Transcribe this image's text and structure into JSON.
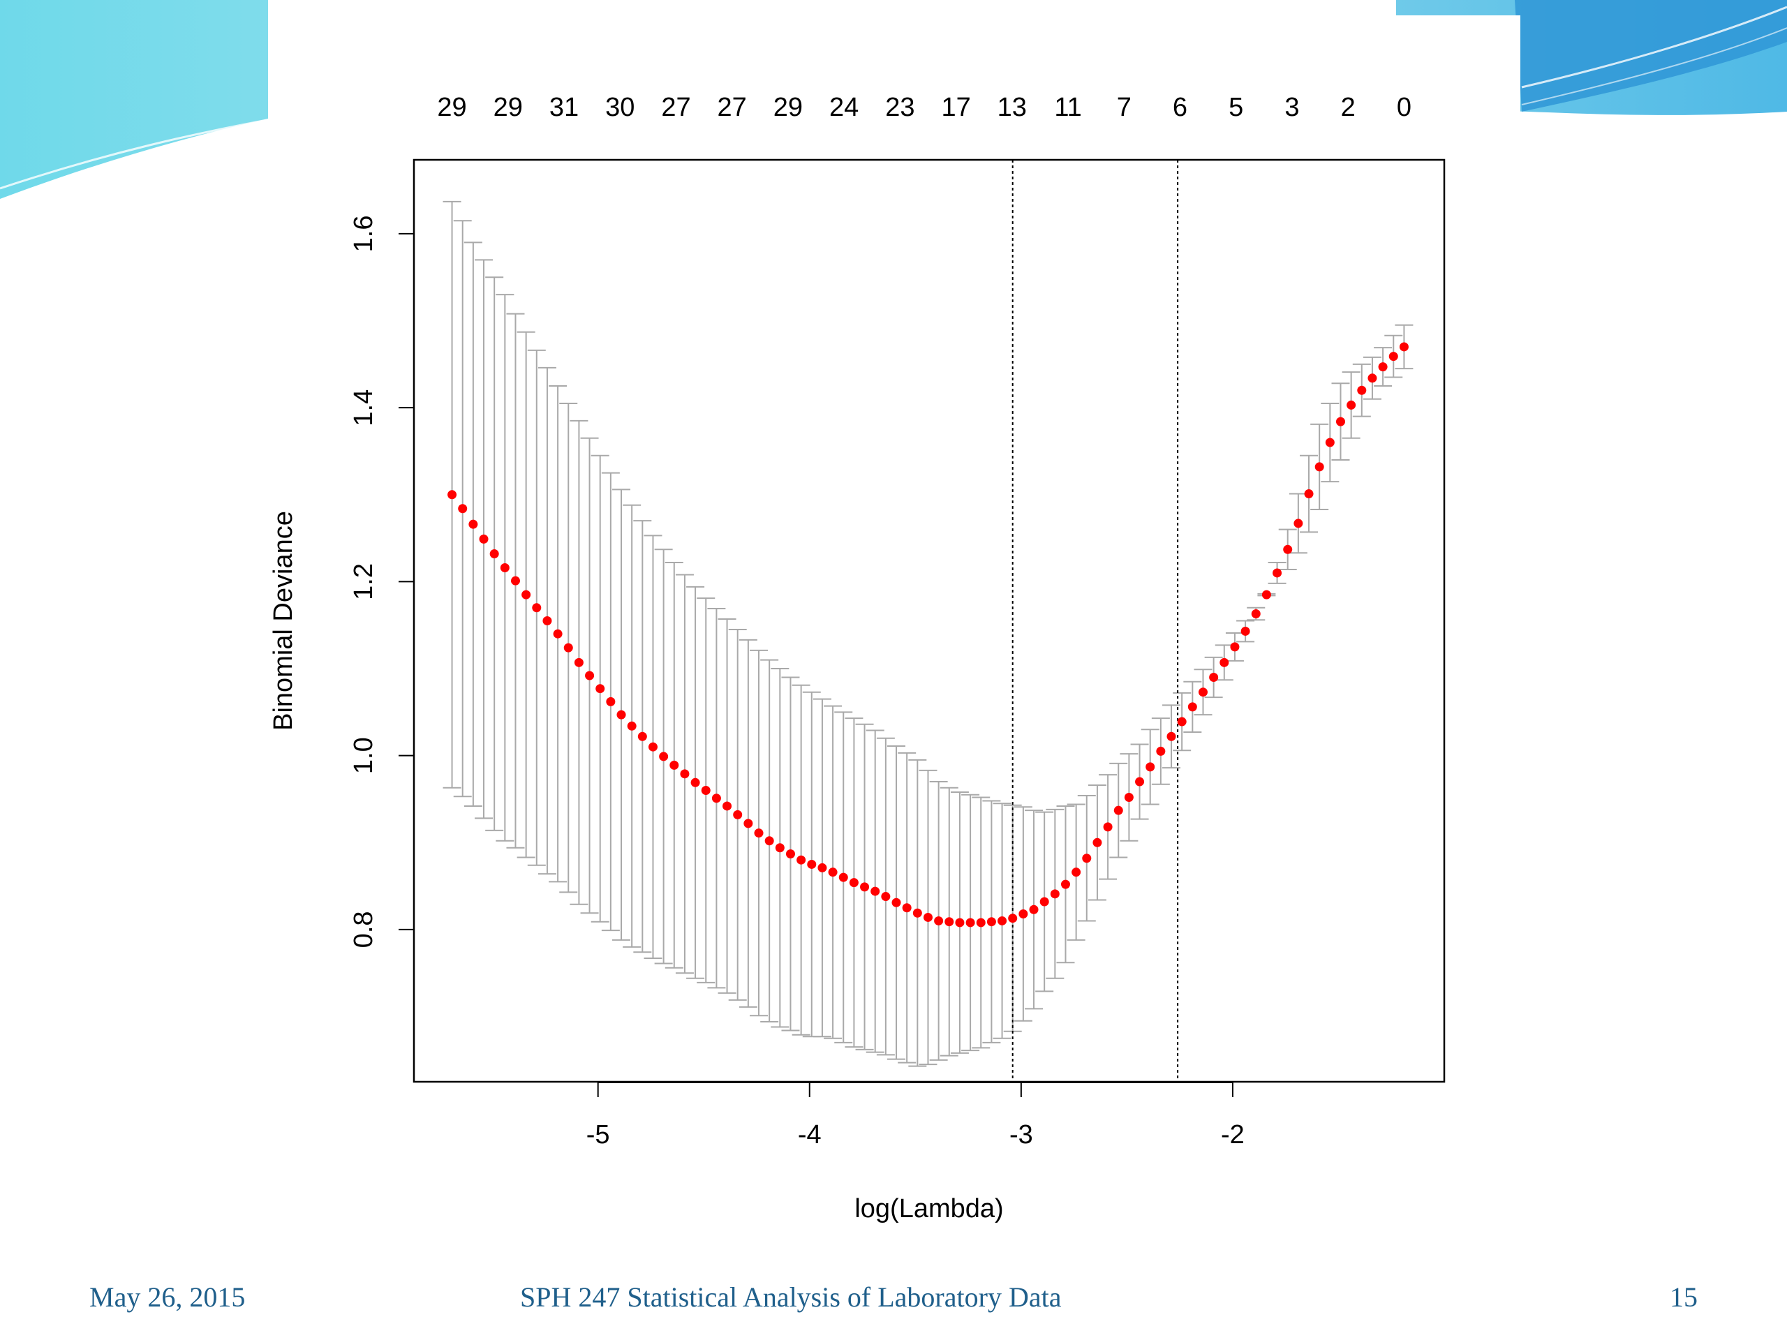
{
  "colors": {
    "point": "#ff0000",
    "error_bar": "#a9a9a9",
    "axis": "#000000",
    "footer_text": "#1f5f8b",
    "header_teal": "#5fd4e6",
    "header_blue": "#2f97d6"
  },
  "footer": {
    "date": "May 26, 2015",
    "course": "SPH 247 Statistical Analysis of Laboratory Data",
    "page": "15"
  },
  "chart_data": {
    "type": "scatter",
    "title": "",
    "xlabel": "log(Lambda)",
    "ylabel": "Binomial Deviance",
    "xlim": [
      -5.87,
      -1.0
    ],
    "ylim": [
      0.625,
      1.685
    ],
    "x_ticks": [
      -5,
      -4,
      -3,
      -2
    ],
    "y_ticks": [
      0.8,
      1.0,
      1.2,
      1.4,
      1.6
    ],
    "x_tick_labels": [
      "-5",
      "-4",
      "-3",
      "-2"
    ],
    "y_tick_labels": [
      "0.8",
      "1.0",
      "1.2",
      "1.4",
      "1.6"
    ],
    "top_axis_labels": [
      "29",
      "29",
      "31",
      "30",
      "27",
      "27",
      "29",
      "24",
      "23",
      "17",
      "13",
      "11",
      "7",
      "6",
      "5",
      "3",
      "2",
      "0"
    ],
    "vertical_reference_lines": [
      -3.04,
      -2.26
    ],
    "series": [
      {
        "marker": "point with error bars",
        "x": [
          -5.69,
          -5.64,
          -5.59,
          -5.54,
          -5.49,
          -5.44,
          -5.39,
          -5.34,
          -5.29,
          -5.24,
          -5.19,
          -5.14,
          -5.09,
          -5.04,
          -4.99,
          -4.94,
          -4.89,
          -4.84,
          -4.79,
          -4.74,
          -4.69,
          -4.64,
          -4.59,
          -4.54,
          -4.49,
          -4.44,
          -4.39,
          -4.34,
          -4.29,
          -4.24,
          -4.19,
          -4.14,
          -4.09,
          -4.04,
          -3.99,
          -3.94,
          -3.89,
          -3.84,
          -3.79,
          -3.74,
          -3.69,
          -3.64,
          -3.59,
          -3.54,
          -3.49,
          -3.44,
          -3.39,
          -3.34,
          -3.29,
          -3.24,
          -3.19,
          -3.14,
          -3.09,
          -3.04,
          -2.99,
          -2.94,
          -2.89,
          -2.84,
          -2.79,
          -2.74,
          -2.69,
          -2.64,
          -2.59,
          -2.54,
          -2.49,
          -2.44,
          -2.39,
          -2.34,
          -2.29,
          -2.24,
          -2.19,
          -2.14,
          -2.09,
          -2.04,
          -1.99,
          -1.94,
          -1.89,
          -1.84,
          -1.79,
          -1.74,
          -1.69,
          -1.64,
          -1.59,
          -1.54,
          -1.49,
          -1.44,
          -1.39,
          -1.34,
          -1.29,
          -1.24,
          -1.19
        ],
        "y": [
          1.3,
          1.284,
          1.266,
          1.249,
          1.232,
          1.216,
          1.201,
          1.185,
          1.17,
          1.155,
          1.14,
          1.124,
          1.107,
          1.092,
          1.077,
          1.062,
          1.047,
          1.034,
          1.022,
          1.01,
          0.999,
          0.989,
          0.979,
          0.969,
          0.96,
          0.951,
          0.942,
          0.932,
          0.922,
          0.911,
          0.902,
          0.894,
          0.887,
          0.88,
          0.875,
          0.871,
          0.866,
          0.86,
          0.854,
          0.849,
          0.844,
          0.838,
          0.831,
          0.825,
          0.819,
          0.814,
          0.81,
          0.809,
          0.808,
          0.808,
          0.808,
          0.809,
          0.81,
          0.813,
          0.818,
          0.823,
          0.832,
          0.841,
          0.852,
          0.866,
          0.882,
          0.9,
          0.918,
          0.937,
          0.952,
          0.97,
          0.987,
          1.005,
          1.022,
          1.039,
          1.056,
          1.073,
          1.09,
          1.107,
          1.125,
          1.143,
          1.163,
          1.185,
          1.21,
          1.237,
          1.267,
          1.301,
          1.332,
          1.36,
          1.384,
          1.403,
          1.42,
          1.434,
          1.447,
          1.459,
          1.47
        ],
        "y_upper": [
          1.637,
          1.615,
          1.59,
          1.57,
          1.55,
          1.53,
          1.508,
          1.487,
          1.466,
          1.446,
          1.425,
          1.405,
          1.385,
          1.365,
          1.345,
          1.325,
          1.306,
          1.288,
          1.27,
          1.253,
          1.237,
          1.222,
          1.208,
          1.194,
          1.181,
          1.169,
          1.157,
          1.145,
          1.133,
          1.121,
          1.11,
          1.1,
          1.09,
          1.081,
          1.073,
          1.065,
          1.057,
          1.05,
          1.043,
          1.036,
          1.029,
          1.02,
          1.011,
          1.003,
          0.995,
          0.983,
          0.97,
          0.963,
          0.958,
          0.955,
          0.952,
          0.948,
          0.945,
          0.943,
          0.941,
          0.937,
          0.935,
          0.938,
          0.942,
          0.944,
          0.954,
          0.966,
          0.978,
          0.991,
          1.002,
          1.013,
          1.03,
          1.043,
          1.058,
          1.072,
          1.085,
          1.099,
          1.113,
          1.127,
          1.141,
          1.155,
          1.17,
          1.184,
          1.198,
          1.214,
          1.233,
          1.257,
          1.283,
          1.315,
          1.34,
          1.365,
          1.39,
          1.41,
          1.425,
          1.435,
          1.445
        ],
        "y_lower": [
          0.963,
          0.953,
          0.942,
          0.928,
          0.914,
          0.902,
          0.894,
          0.883,
          0.874,
          0.864,
          0.855,
          0.843,
          0.829,
          0.819,
          0.809,
          0.799,
          0.788,
          0.78,
          0.774,
          0.767,
          0.761,
          0.756,
          0.75,
          0.744,
          0.739,
          0.733,
          0.727,
          0.719,
          0.711,
          0.701,
          0.694,
          0.688,
          0.684,
          0.679,
          0.677,
          0.677,
          0.675,
          0.67,
          0.665,
          0.662,
          0.659,
          0.656,
          0.651,
          0.647,
          0.643,
          0.645,
          0.65,
          0.655,
          0.658,
          0.661,
          0.664,
          0.67,
          0.675,
          0.683,
          0.695,
          0.709,
          0.729,
          0.744,
          0.762,
          0.788,
          0.81,
          0.834,
          0.858,
          0.883,
          0.902,
          0.927,
          0.944,
          0.967,
          0.986,
          1.006,
          1.027,
          1.047,
          1.067,
          1.087,
          1.109,
          1.131,
          1.156,
          1.186,
          1.222,
          1.26,
          1.301,
          1.345,
          1.381,
          1.405,
          1.428,
          1.441,
          1.45,
          1.458,
          1.469,
          1.483,
          1.495
        ]
      }
    ],
    "grid": false,
    "legend": "none"
  }
}
